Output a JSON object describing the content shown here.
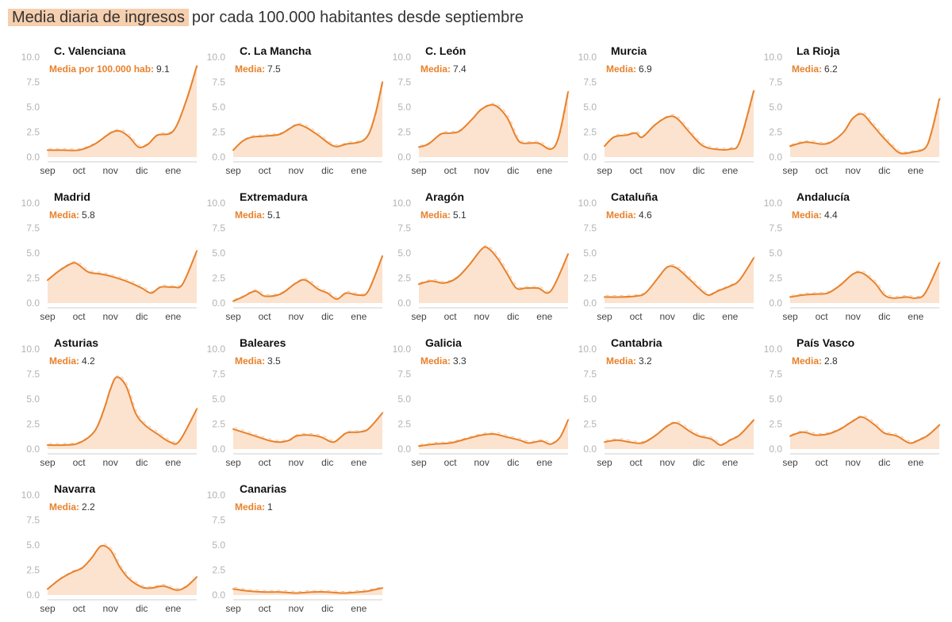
{
  "header": {
    "title_highlight": "Media diaria de ingresos",
    "title_rest": "por cada 100.000 habitantes desde septiembre"
  },
  "colors": {
    "line": "#e8812b",
    "fill": "#fbe3d0",
    "highlight": "#f6cfae",
    "label": "#e8812b"
  },
  "chart_data": {
    "type": "area",
    "title": "Media diaria de ingresos por cada 100.000 habitantes desde septiembre",
    "ylim": [
      0,
      10
    ],
    "yticks": [
      "10.0",
      "7.5",
      "5.0",
      "2.5",
      "0.0"
    ],
    "x": [
      "sep",
      "oct",
      "nov",
      "dic",
      "ene"
    ],
    "xlim": [
      0,
      4.75
    ],
    "first_media_label": "Media por 100.000 hab:",
    "media_label": "Media:",
    "panels": [
      {
        "name": "C. Valenciana",
        "media": "9.1",
        "points": [
          [
            0,
            0.7
          ],
          [
            0.5,
            0.7
          ],
          [
            1,
            0.7
          ],
          [
            1.5,
            1.3
          ],
          [
            2,
            2.4
          ],
          [
            2.3,
            2.6
          ],
          [
            2.6,
            2.0
          ],
          [
            2.9,
            1.0
          ],
          [
            3.2,
            1.3
          ],
          [
            3.5,
            2.2
          ],
          [
            4,
            2.6
          ],
          [
            4.4,
            5.5
          ],
          [
            4.75,
            9.1
          ]
        ]
      },
      {
        "name": "C. La Mancha",
        "media": "7.5",
        "points": [
          [
            0,
            0.7
          ],
          [
            0.3,
            1.6
          ],
          [
            0.6,
            2.0
          ],
          [
            1,
            2.1
          ],
          [
            1.5,
            2.3
          ],
          [
            2,
            3.2
          ],
          [
            2.3,
            3.0
          ],
          [
            2.7,
            2.2
          ],
          [
            3.2,
            1.1
          ],
          [
            3.6,
            1.3
          ],
          [
            4.2,
            1.8
          ],
          [
            4.5,
            4.0
          ],
          [
            4.75,
            7.5
          ]
        ]
      },
      {
        "name": "C. León",
        "media": "7.4",
        "points": [
          [
            0,
            1.0
          ],
          [
            0.3,
            1.3
          ],
          [
            0.7,
            2.3
          ],
          [
            1,
            2.4
          ],
          [
            1.3,
            2.6
          ],
          [
            1.7,
            3.8
          ],
          [
            2,
            4.8
          ],
          [
            2.4,
            5.2
          ],
          [
            2.8,
            4.0
          ],
          [
            3.1,
            2.0
          ],
          [
            3.3,
            1.4
          ],
          [
            3.8,
            1.4
          ],
          [
            4.2,
            0.8
          ],
          [
            4.45,
            2.0
          ],
          [
            4.75,
            6.5
          ]
        ]
      },
      {
        "name": "Murcia",
        "media": "6.9",
        "points": [
          [
            0,
            1.1
          ],
          [
            0.3,
            2.0
          ],
          [
            0.7,
            2.2
          ],
          [
            1,
            2.4
          ],
          [
            1.2,
            2.0
          ],
          [
            1.6,
            3.2
          ],
          [
            2,
            4.0
          ],
          [
            2.3,
            3.9
          ],
          [
            2.7,
            2.5
          ],
          [
            3.1,
            1.2
          ],
          [
            3.5,
            0.8
          ],
          [
            4,
            0.8
          ],
          [
            4.3,
            1.5
          ],
          [
            4.75,
            6.6
          ]
        ]
      },
      {
        "name": "La Rioja",
        "media": "6.2",
        "points": [
          [
            0,
            1.1
          ],
          [
            0.5,
            1.5
          ],
          [
            1,
            1.3
          ],
          [
            1.3,
            1.5
          ],
          [
            1.7,
            2.5
          ],
          [
            2,
            3.9
          ],
          [
            2.3,
            4.3
          ],
          [
            2.6,
            3.3
          ],
          [
            2.9,
            2.2
          ],
          [
            3.2,
            1.2
          ],
          [
            3.5,
            0.4
          ],
          [
            3.9,
            0.5
          ],
          [
            4.3,
            0.9
          ],
          [
            4.5,
            2.5
          ],
          [
            4.75,
            5.8
          ]
        ]
      },
      {
        "name": "Madrid",
        "media": "5.8",
        "points": [
          [
            0,
            2.3
          ],
          [
            0.4,
            3.3
          ],
          [
            0.8,
            4.0
          ],
          [
            1,
            3.8
          ],
          [
            1.3,
            3.1
          ],
          [
            1.7,
            2.9
          ],
          [
            2,
            2.7
          ],
          [
            2.5,
            2.2
          ],
          [
            3,
            1.5
          ],
          [
            3.3,
            1.0
          ],
          [
            3.6,
            1.6
          ],
          [
            4,
            1.6
          ],
          [
            4.3,
            1.9
          ],
          [
            4.75,
            5.2
          ]
        ]
      },
      {
        "name": "Extremadura",
        "media": "5.1",
        "points": [
          [
            0,
            0.2
          ],
          [
            0.3,
            0.6
          ],
          [
            0.7,
            1.2
          ],
          [
            1,
            0.7
          ],
          [
            1.5,
            0.9
          ],
          [
            2,
            2.0
          ],
          [
            2.3,
            2.3
          ],
          [
            2.7,
            1.4
          ],
          [
            3,
            1.0
          ],
          [
            3.3,
            0.4
          ],
          [
            3.6,
            1.0
          ],
          [
            4,
            0.8
          ],
          [
            4.3,
            1.2
          ],
          [
            4.75,
            4.7
          ]
        ]
      },
      {
        "name": "Aragón",
        "media": "5.1",
        "points": [
          [
            0,
            1.9
          ],
          [
            0.4,
            2.2
          ],
          [
            0.8,
            2.0
          ],
          [
            1.2,
            2.5
          ],
          [
            1.6,
            3.8
          ],
          [
            2,
            5.4
          ],
          [
            2.2,
            5.5
          ],
          [
            2.5,
            4.5
          ],
          [
            2.8,
            3.0
          ],
          [
            3.1,
            1.5
          ],
          [
            3.4,
            1.5
          ],
          [
            3.8,
            1.5
          ],
          [
            4.2,
            1.2
          ],
          [
            4.75,
            4.9
          ]
        ]
      },
      {
        "name": "Cataluña",
        "media": "4.6",
        "points": [
          [
            0,
            0.6
          ],
          [
            0.5,
            0.6
          ],
          [
            1,
            0.7
          ],
          [
            1.3,
            1.0
          ],
          [
            1.7,
            2.5
          ],
          [
            2,
            3.6
          ],
          [
            2.3,
            3.5
          ],
          [
            2.7,
            2.4
          ],
          [
            3,
            1.5
          ],
          [
            3.3,
            0.8
          ],
          [
            3.6,
            1.2
          ],
          [
            4,
            1.7
          ],
          [
            4.3,
            2.3
          ],
          [
            4.75,
            4.5
          ]
        ]
      },
      {
        "name": "Andalucía",
        "media": "4.4",
        "points": [
          [
            0,
            0.6
          ],
          [
            0.4,
            0.8
          ],
          [
            0.8,
            0.9
          ],
          [
            1.2,
            1.0
          ],
          [
            1.6,
            1.8
          ],
          [
            2,
            2.9
          ],
          [
            2.3,
            3.0
          ],
          [
            2.7,
            2.0
          ],
          [
            3,
            0.8
          ],
          [
            3.3,
            0.5
          ],
          [
            3.7,
            0.6
          ],
          [
            4,
            0.5
          ],
          [
            4.3,
            1.0
          ],
          [
            4.75,
            4.0
          ]
        ]
      },
      {
        "name": "Asturias",
        "media": "4.2",
        "points": [
          [
            0,
            0.4
          ],
          [
            0.5,
            0.4
          ],
          [
            1,
            0.6
          ],
          [
            1.5,
            1.8
          ],
          [
            1.8,
            4.0
          ],
          [
            2,
            6.0
          ],
          [
            2.2,
            7.2
          ],
          [
            2.5,
            6.3
          ],
          [
            2.8,
            3.6
          ],
          [
            3.1,
            2.4
          ],
          [
            3.5,
            1.5
          ],
          [
            3.9,
            0.7
          ],
          [
            4.2,
            0.8
          ],
          [
            4.75,
            4.0
          ]
        ]
      },
      {
        "name": "Baleares",
        "media": "3.5",
        "points": [
          [
            0,
            2.0
          ],
          [
            0.4,
            1.6
          ],
          [
            0.8,
            1.2
          ],
          [
            1.2,
            0.8
          ],
          [
            1.5,
            0.7
          ],
          [
            1.8,
            0.9
          ],
          [
            2,
            1.3
          ],
          [
            2.4,
            1.4
          ],
          [
            2.8,
            1.2
          ],
          [
            3.2,
            0.7
          ],
          [
            3.6,
            1.6
          ],
          [
            4,
            1.7
          ],
          [
            4.3,
            2.0
          ],
          [
            4.75,
            3.6
          ]
        ]
      },
      {
        "name": "Galicia",
        "media": "3.3",
        "points": [
          [
            0,
            0.3
          ],
          [
            0.5,
            0.5
          ],
          [
            1,
            0.6
          ],
          [
            1.5,
            1.0
          ],
          [
            2,
            1.4
          ],
          [
            2.4,
            1.5
          ],
          [
            2.8,
            1.2
          ],
          [
            3.2,
            0.9
          ],
          [
            3.5,
            0.6
          ],
          [
            3.9,
            0.8
          ],
          [
            4.2,
            0.5
          ],
          [
            4.5,
            1.2
          ],
          [
            4.75,
            2.9
          ]
        ]
      },
      {
        "name": "Cantabria",
        "media": "3.2",
        "points": [
          [
            0,
            0.7
          ],
          [
            0.4,
            0.9
          ],
          [
            0.8,
            0.7
          ],
          [
            1.2,
            0.6
          ],
          [
            1.6,
            1.3
          ],
          [
            2,
            2.3
          ],
          [
            2.3,
            2.6
          ],
          [
            2.7,
            1.8
          ],
          [
            3,
            1.3
          ],
          [
            3.4,
            1.0
          ],
          [
            3.7,
            0.4
          ],
          [
            4,
            0.9
          ],
          [
            4.3,
            1.4
          ],
          [
            4.75,
            2.9
          ]
        ]
      },
      {
        "name": "País Vasco",
        "media": "2.8",
        "points": [
          [
            0,
            1.3
          ],
          [
            0.4,
            1.7
          ],
          [
            0.8,
            1.4
          ],
          [
            1.2,
            1.5
          ],
          [
            1.6,
            2.0
          ],
          [
            2,
            2.8
          ],
          [
            2.3,
            3.2
          ],
          [
            2.7,
            2.4
          ],
          [
            3,
            1.6
          ],
          [
            3.4,
            1.3
          ],
          [
            3.8,
            0.6
          ],
          [
            4.1,
            0.9
          ],
          [
            4.4,
            1.4
          ],
          [
            4.75,
            2.4
          ]
        ]
      },
      {
        "name": "Navarra",
        "media": "2.2",
        "points": [
          [
            0,
            0.6
          ],
          [
            0.4,
            1.6
          ],
          [
            0.8,
            2.3
          ],
          [
            1.1,
            2.7
          ],
          [
            1.4,
            3.7
          ],
          [
            1.7,
            4.9
          ],
          [
            2,
            4.5
          ],
          [
            2.3,
            2.8
          ],
          [
            2.6,
            1.6
          ],
          [
            3,
            0.8
          ],
          [
            3.3,
            0.7
          ],
          [
            3.7,
            0.9
          ],
          [
            4.1,
            0.5
          ],
          [
            4.4,
            0.8
          ],
          [
            4.75,
            1.8
          ]
        ]
      },
      {
        "name": "Canarias",
        "media": "1",
        "points": [
          [
            0,
            0.6
          ],
          [
            0.5,
            0.4
          ],
          [
            1,
            0.3
          ],
          [
            1.5,
            0.3
          ],
          [
            2,
            0.2
          ],
          [
            2.5,
            0.3
          ],
          [
            3,
            0.3
          ],
          [
            3.5,
            0.2
          ],
          [
            4,
            0.3
          ],
          [
            4.3,
            0.4
          ],
          [
            4.75,
            0.7
          ]
        ]
      }
    ]
  }
}
